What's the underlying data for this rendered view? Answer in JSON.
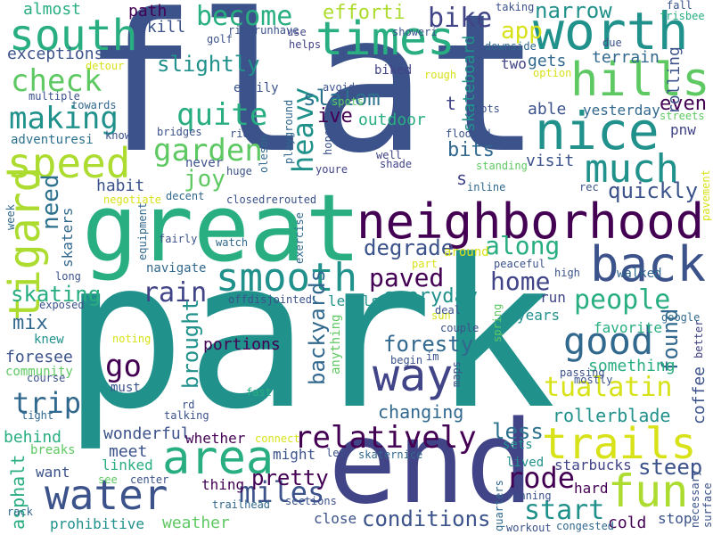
{
  "words": {
    "flat": "flat",
    "park": "park",
    "great": "great",
    "end": "end",
    "neighborhood": "neighborhood",
    "worth": "worth",
    "times": "times",
    "nice": "nice",
    "hills": "hills",
    "back": "back",
    "south": "south",
    "speed": "speed",
    "much": "much",
    "area": "area",
    "smooth": "smooth",
    "water": "water",
    "trails": "trails",
    "fun": "fun",
    "way": "way",
    "tigard": "tigard",
    "good": "good",
    "making": "making",
    "check": "check",
    "garden": "garden",
    "quite": "quite",
    "become": "become",
    "slightly": "slightly",
    "people": "people",
    "paved": "paved",
    "home": "home",
    "relatively": "relatively",
    "tualatin": "tualatin",
    "miles": "miles",
    "rain": "rain",
    "heavy": "heavy",
    "slalom": "slalom",
    "bike": "bike",
    "efforti": "efforti",
    "app": "app",
    "narrow": "narrow",
    "trip": "trip",
    "go": "go",
    "rode": "rode",
    "start": "start",
    "along": "along",
    "degrade": "degrade",
    "foresty": "foresty",
    "backyards": "backyards",
    "pretty": "pretty",
    "conditions": "conditions",
    "steep": "steep",
    "less": "less",
    "skating": "skating",
    "everyday": "everyday",
    "need": "need",
    "joy": "joy",
    "quickly": "quickly",
    "brought": "brought",
    "found": "found",
    "rollerblade": "rollerblade",
    "changing": "changing",
    "mix": "mix",
    "even": "even",
    "bits": "bits",
    "almost": "almost",
    "path": "path",
    "skill": "skill",
    "exceptions": "exceptions",
    "adventuresi": "adventuresi",
    "habit": "habit",
    "ive": "ive",
    "outdoor": "outdoor",
    "skateboard": "skateboard",
    "gets": "gets",
    "terrain": "terrain",
    "rolling": "rolling",
    "able": "able",
    "yesterday": "yesterday",
    "pnw": "pnw",
    "visit": "visit",
    "portions": "portions",
    "something": "something",
    "favorite": "favorite",
    "coffee": "coffee",
    "asphalt": "asphalt",
    "behind": "behind",
    "wonderful": "wonderful",
    "meet": "meet",
    "whether": "whether",
    "might": "might",
    "want": "want",
    "linked": "linked",
    "thing": "thing",
    "weather": "weather",
    "prohibitive": "prohibitive",
    "close": "close",
    "starbucks": "starbucks",
    "hard": "hard",
    "cold": "cold",
    "stop": "stop",
    "lived": "lived",
    "sets": "sets",
    "run": "run",
    "years": "years",
    "levels": "levels",
    "anything": "anything",
    "must": "must",
    "foresee": "foresee",
    "community": "community",
    "knew": "knew",
    "navigate": "navigate",
    "walked": "walked",
    "around": "around",
    "easily": "easily",
    "never": "never",
    "bridges": "bridges",
    "two": "two",
    "biked": "biked",
    "t": "t",
    "s": "s",
    "shade": "shade",
    "well": "well",
    "decent": "decent",
    "closedrerouted": "closedrerouted",
    "offdisjointed": "offdisjointed",
    "breaks": "breaks",
    "rd": "rd",
    "fast": "fast",
    "trailhead": "trailhead",
    "sections": "sections",
    "quarters": "quarters",
    "workout": "workout",
    "congested": "congested",
    "surface": "surface",
    "necessary": "necessary",
    "better": "better",
    "google": "google",
    "high": "high",
    "mostly": "mostly",
    "passing": "passing",
    "course": "course",
    "tight": "tight",
    "talking": "talking",
    "center": "center",
    "rack": "rack",
    "skaters": "skaters",
    "golf": "golf",
    "riderunhave": "riderunhave",
    "use": "use",
    "helps": "helps",
    "taking": "taking",
    "fall": "fall",
    "frisbee": "frisbee",
    "showeri": "showeri",
    "downside": "downside",
    "option": "option",
    "due": "due",
    "detour": "detour",
    "rough": "rough",
    "towards": "towards",
    "multiple": "multiple",
    "playground": "playground",
    "spots": "spots",
    "lots": "lots",
    "flooded": "flooded",
    "streets": "streets",
    "know": "know",
    "ride": "ride",
    "oleson": "oleson",
    "hope": "hope",
    "avoid": "avoid",
    "inline": "inline",
    "standing": "standing",
    "pavement": "pavement",
    "rec": "rec",
    "huge": "huge",
    "youre": "youre",
    "exercise": "exercise",
    "negotiate": "negotiate",
    "week": "week",
    "equipment": "equipment",
    "fairly": "fairly",
    "watch": "watch",
    "long": "long",
    "part": "part",
    "peaceful": "peaceful",
    "exposed": "exposed",
    "noting": "noting",
    "sun": "sun",
    "deal": "deal",
    "couple": "couple",
    "spring": "spring",
    "begin": "begin",
    "im": "im",
    "maps": "maps",
    "connect": "connect",
    "let": "let",
    "skaternice": "skaternice",
    "see": "see",
    "running": "running"
  },
  "colors": {
    "dark_purple": "#440154",
    "indigo": "#3b528b",
    "navy_blue": "#414487",
    "blue": "#31688e",
    "teal_blue": "#2c728e",
    "teal": "#21918c",
    "sea_green": "#28ae80",
    "green": "#5ec962",
    "lime": "#addc30",
    "yellow": "#d8e219",
    "bright_yellow": "#fde725"
  }
}
